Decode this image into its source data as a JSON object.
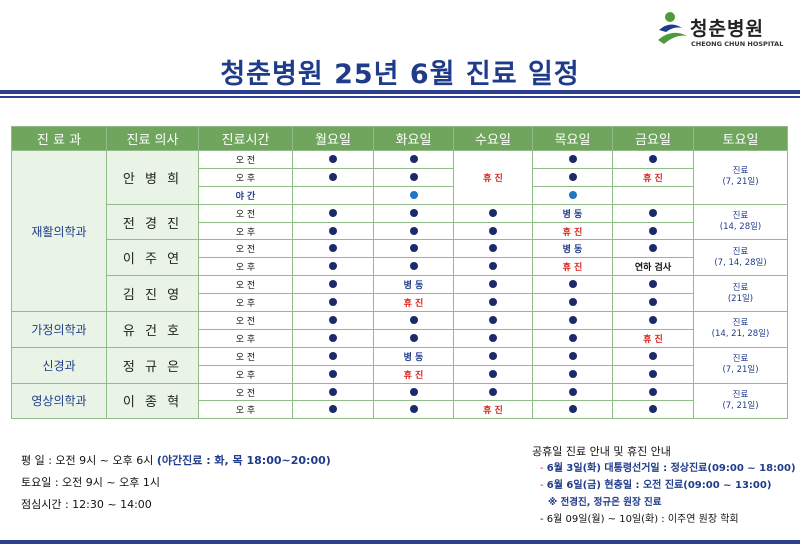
{
  "logo": {
    "text": "청춘병원",
    "sub": "CHEONG CHUN HOSPITAL"
  },
  "title": "청춘병원 25년 6월 진료 일정",
  "headers": [
    "진 료 과",
    "진료 의사",
    "진료시간",
    "월요일",
    "화요일",
    "수요일",
    "목요일",
    "금요일",
    "토요일"
  ],
  "departments": [
    {
      "name": "재활의학과",
      "rows": 9
    },
    {
      "name": "가정의학과",
      "rows": 2
    },
    {
      "name": "신경과",
      "rows": 2
    },
    {
      "name": "영상의학과",
      "rows": 2
    }
  ],
  "doctors": [
    {
      "name": "안 병 희",
      "rows": 3,
      "saturday": [
        "진료",
        "(7, 21일)"
      ]
    },
    {
      "name": "전 경 진",
      "rows": 2,
      "saturday": [
        "진료",
        "(14, 28일)"
      ]
    },
    {
      "name": "이 주 연",
      "rows": 2,
      "saturday": [
        "진료",
        "(7, 14, 28일)"
      ]
    },
    {
      "name": "김 진 영",
      "rows": 2,
      "saturday": [
        "진료",
        "(21일)"
      ]
    },
    {
      "name": "유 건 호",
      "rows": 2,
      "saturday": [
        "진료",
        "(14, 21, 28일)"
      ]
    },
    {
      "name": "정 규 은",
      "rows": 2,
      "saturday": [
        "진료",
        "(7, 21일)"
      ]
    },
    {
      "name": "이 종 혁",
      "rows": 2,
      "saturday": [
        "진료",
        "(7, 21일)"
      ]
    }
  ],
  "status_labels": {
    "closed": "휴 진",
    "ward": "병 동",
    "inspection": "연하 검사"
  },
  "rows": [
    {
      "session": "오 전",
      "night": false,
      "days": [
        "dot",
        "dot",
        "closed3",
        "dot",
        "dot"
      ]
    },
    {
      "session": "오 후",
      "night": false,
      "days": [
        "dot",
        "dot",
        null,
        "dot",
        "closed"
      ]
    },
    {
      "session": "야 간",
      "night": true,
      "days": [
        "",
        "dotblue",
        null,
        "dotblue",
        ""
      ]
    },
    {
      "session": "오 전",
      "night": false,
      "days": [
        "dot",
        "dot",
        "dot",
        "ward",
        "dot"
      ]
    },
    {
      "session": "오 후",
      "night": false,
      "days": [
        "dot",
        "dot",
        "dot",
        "closed",
        "dot"
      ]
    },
    {
      "session": "오 전",
      "night": false,
      "days": [
        "dot",
        "dot",
        "dot",
        "ward",
        "dot"
      ]
    },
    {
      "session": "오 후",
      "night": false,
      "days": [
        "dot",
        "dot",
        "dot",
        "closed",
        "inspection"
      ]
    },
    {
      "session": "오 전",
      "night": false,
      "days": [
        "dot",
        "ward",
        "dot",
        "dot",
        "dot"
      ]
    },
    {
      "session": "오 후",
      "night": false,
      "days": [
        "dot",
        "closed",
        "dot",
        "dot",
        "dot"
      ]
    },
    {
      "session": "오 전",
      "night": false,
      "days": [
        "dot",
        "dot",
        "dot",
        "dot",
        "dot"
      ]
    },
    {
      "session": "오 후",
      "night": false,
      "days": [
        "dot",
        "dot",
        "dot",
        "dot",
        "closed"
      ]
    },
    {
      "session": "오 전",
      "night": false,
      "days": [
        "dot",
        "ward",
        "dot",
        "dot",
        "dot"
      ]
    },
    {
      "session": "오 후",
      "night": false,
      "days": [
        "dot",
        "closed",
        "dot",
        "dot",
        "dot"
      ]
    },
    {
      "session": "오 전",
      "night": false,
      "days": [
        "dot",
        "dot",
        "dot",
        "dot",
        "dot"
      ]
    },
    {
      "session": "오 후",
      "night": false,
      "days": [
        "dot",
        "dot",
        "closed",
        "dot",
        "dot"
      ]
    }
  ],
  "hours": {
    "weekday": "평   일 : 오전 9시 ~ 오후 6시",
    "night": "(야간진료 : 화, 목 18:00~20:00)",
    "saturday": "토요일 : 오전 9시 ~ 오후 1시",
    "lunch": "점심시간 : 12:30 ~ 14:00"
  },
  "notice": {
    "title": "공휴일 진료 안내 및 휴진 안내",
    "item1": "6월 3일(화) 대통령선거일 : 정상진료(09:00 ~ 18:00)",
    "item2": "6월 6일(금) 현충일 : 오전 진료(09:00 ~ 13:00)",
    "item2_sub": "※ 전경진, 정규은 원장 진료",
    "item3": "6월 09일(월) ~ 10일(화) : 이주연 원장 학회"
  },
  "colors": {
    "navy": "#1f3c8a",
    "header_green": "#6fa55c",
    "closed_red": "#d9261c",
    "dot": "#1a2a6b",
    "night_dot": "#1d78c1"
  }
}
